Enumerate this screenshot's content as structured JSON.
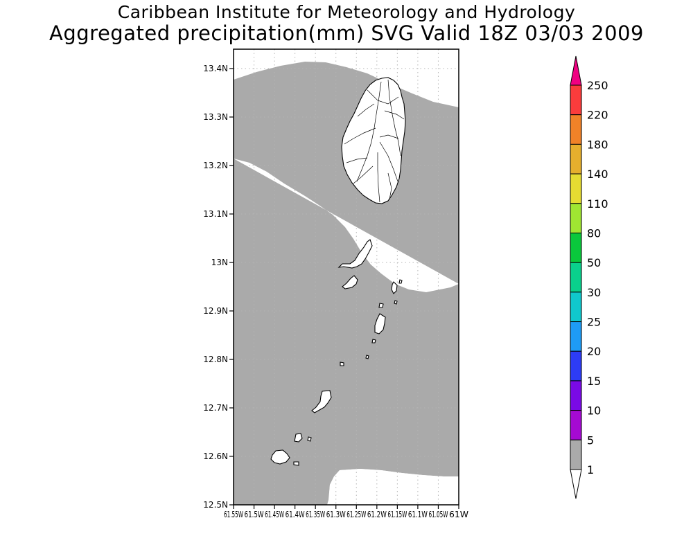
{
  "header": {
    "line1": "Caribbean Institute for Meteorology and Hydrology",
    "line2": "Aggregated precipitation(mm) SVG Valid 18Z 03/03 2009"
  },
  "map": {
    "lat_ticks": [
      {
        "value": 13.4,
        "label": "13.4N"
      },
      {
        "value": 13.3,
        "label": "13.3N"
      },
      {
        "value": 13.2,
        "label": "13.2N"
      },
      {
        "value": 13.1,
        "label": "13.1N"
      },
      {
        "value": 13.0,
        "label": "13N"
      },
      {
        "value": 12.9,
        "label": "12.9N"
      },
      {
        "value": 12.8,
        "label": "12.8N"
      },
      {
        "value": 12.7,
        "label": "12.7N"
      },
      {
        "value": 12.6,
        "label": "12.6N"
      },
      {
        "value": 12.5,
        "label": "12.5N"
      }
    ],
    "lon_ticks": [
      {
        "value": -61.55,
        "label": "61.55W"
      },
      {
        "value": -61.5,
        "label": "61.5W"
      },
      {
        "value": -61.45,
        "label": "61.45W"
      },
      {
        "value": -61.4,
        "label": "61.4W"
      },
      {
        "value": -61.35,
        "label": "61.35W"
      },
      {
        "value": -61.3,
        "label": "61.3W"
      },
      {
        "value": -61.25,
        "label": "61.25W"
      },
      {
        "value": -61.2,
        "label": "61.2W"
      },
      {
        "value": -61.15,
        "label": "61.15W"
      },
      {
        "value": -61.1,
        "label": "61.1W"
      },
      {
        "value": -61.05,
        "label": "61.05W"
      },
      {
        "value": -61.0,
        "label": "61W"
      }
    ],
    "lat_range": [
      12.5,
      13.44
    ],
    "lon_range": [
      -61.55,
      -61.0
    ],
    "shaded_color": "#aaaaaa",
    "background_color": "#ffffff",
    "coast_color": "#000000",
    "grid": true
  },
  "colorbar": {
    "bins": [
      {
        "label": "1",
        "color": "#ffffff"
      },
      {
        "label": "5",
        "color": "#aaaaaa"
      },
      {
        "label": "10",
        "color": "#a50ad2"
      },
      {
        "label": "15",
        "color": "#7a0ae6"
      },
      {
        "label": "20",
        "color": "#2d3cf5"
      },
      {
        "label": "25",
        "color": "#1e9bf5"
      },
      {
        "label": "30",
        "color": "#10c8cd"
      },
      {
        "label": "50",
        "color": "#0ad08c"
      },
      {
        "label": "80",
        "color": "#0ac83c"
      },
      {
        "label": "110",
        "color": "#a0e632"
      },
      {
        "label": "140",
        "color": "#e6dc32"
      },
      {
        "label": "180",
        "color": "#e6af2d"
      },
      {
        "label": "220",
        "color": "#f08228"
      },
      {
        "label": "250",
        "color": "#fa3c3c"
      }
    ],
    "top_arrow_color": "#f00082",
    "bottom_arrow_color": "#ffffff"
  }
}
